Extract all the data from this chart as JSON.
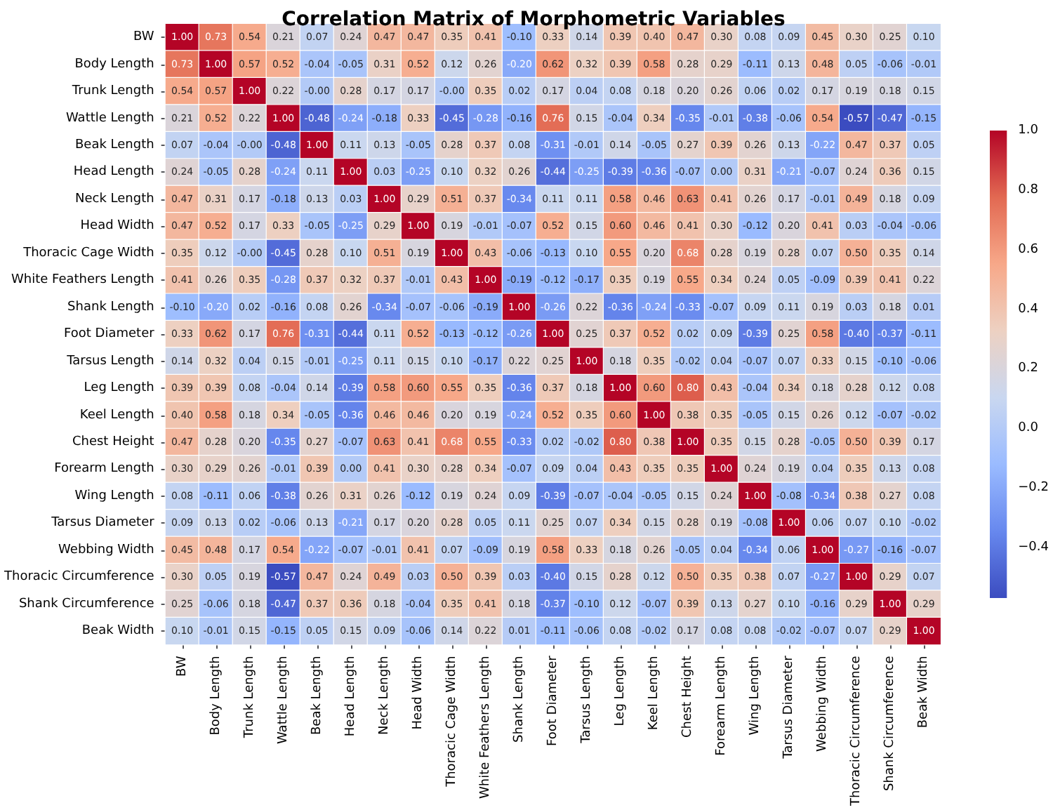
{
  "chart_data": {
    "type": "heatmap",
    "title": "Correlation Matrix of Morphometric Variables",
    "categories": [
      "BW",
      "Body Length",
      "Trunk Length",
      "Wattle Length",
      "Beak Length",
      "Head Length",
      "Neck Length",
      "Head Width",
      "Thoracic Cage Width",
      "White Feathers Length",
      "Shank Length",
      "Foot Diameter",
      "Tarsus Length",
      "Leg Length",
      "Keel Length",
      "Chest Height",
      "Forearm Length",
      "Wing Length",
      "Tarsus Diameter",
      "Webbing Width",
      "Thoracic Circumference",
      "Shank Circumference",
      "Beak Width"
    ],
    "y_categories": [
      "BW",
      "Body Length",
      "Trunk Length",
      "Wattle Length",
      "Beak Length",
      "Head Length",
      "Neck Length",
      "Head Width",
      "Thoracic Cage Width",
      "White Feathers Length",
      "Shank Length",
      "Foot Diameter",
      "Tarsus Length",
      "Leg Length",
      "Keel Length",
      "Chest Height",
      "Forearm Length",
      "Wing Length",
      "Tarsus Diameter",
      "Webbing Width",
      "Thoracic Circumference",
      "Shank Circumference",
      "Beak Width"
    ],
    "cells": [
      [
        1.0,
        0.73,
        0.54,
        0.21,
        0.07,
        0.24,
        0.47,
        0.47,
        0.35,
        0.41,
        -0.1,
        0.33,
        0.14,
        0.39,
        0.4,
        0.47,
        0.3,
        0.08,
        0.09,
        0.45,
        0.3,
        0.25,
        0.1
      ],
      [
        0.73,
        1.0,
        0.57,
        0.52,
        -0.04,
        -0.05,
        0.31,
        0.52,
        0.12,
        0.26,
        -0.2,
        0.62,
        0.32,
        0.39,
        0.58,
        0.28,
        0.29,
        -0.11,
        0.13,
        0.48,
        0.05,
        -0.06,
        -0.01
      ],
      [
        0.54,
        0.57,
        1.0,
        0.22,
        0,
        0.28,
        0.17,
        0.17,
        0,
        0.35,
        0.02,
        0.17,
        0.04,
        0.08,
        0.18,
        0.2,
        0.26,
        0.06,
        0.02,
        0.17,
        0.19,
        0.18,
        0.15
      ],
      [
        0.21,
        0.52,
        0.22,
        1.0,
        -0.48,
        -0.24,
        -0.18,
        0.33,
        -0.45,
        -0.28,
        -0.16,
        0.76,
        0.15,
        -0.04,
        0.34,
        -0.35,
        -0.01,
        -0.38,
        -0.06,
        0.54,
        -0.57,
        -0.47,
        -0.15
      ],
      [
        0.07,
        -0.04,
        0,
        -0.48,
        1.0,
        0.11,
        0.13,
        -0.05,
        0.28,
        0.37,
        0.08,
        -0.31,
        -0.01,
        0.14,
        -0.05,
        0.27,
        0.39,
        0.26,
        0.13,
        -0.22,
        0.47,
        0.37,
        0.05
      ],
      [
        0.24,
        -0.05,
        0.28,
        -0.24,
        0.11,
        1.0,
        0.03,
        -0.25,
        0.1,
        0.32,
        0.26,
        -0.44,
        -0.25,
        -0.39,
        -0.36,
        -0.07,
        0.0,
        0.31,
        -0.21,
        -0.07,
        0.24,
        0.36,
        0.15
      ],
      [
        0.47,
        0.31,
        0.17,
        -0.18,
        0.13,
        0.03,
        1.0,
        0.29,
        0.51,
        0.37,
        -0.34,
        0.11,
        0.11,
        0.58,
        0.46,
        0.63,
        0.41,
        0.26,
        0.17,
        -0.01,
        0.49,
        0.18,
        0.09
      ],
      [
        0.47,
        0.52,
        0.17,
        0.33,
        -0.05,
        -0.25,
        0.29,
        1.0,
        0.19,
        -0.01,
        -0.07,
        0.52,
        0.15,
        0.6,
        0.46,
        0.41,
        0.3,
        -0.12,
        0.2,
        0.41,
        0.03,
        -0.04,
        -0.06
      ],
      [
        0.35,
        0.12,
        0,
        -0.45,
        0.28,
        0.1,
        0.51,
        0.19,
        1.0,
        0.43,
        -0.06,
        -0.13,
        0.1,
        0.55,
        0.2,
        0.68,
        0.28,
        0.19,
        0.28,
        0.07,
        0.5,
        0.35,
        0.14
      ],
      [
        0.41,
        0.26,
        0.35,
        -0.28,
        0.37,
        0.32,
        0.37,
        -0.01,
        0.43,
        1.0,
        -0.19,
        -0.12,
        -0.17,
        0.35,
        0.19,
        0.55,
        0.34,
        0.24,
        0.05,
        -0.09,
        0.39,
        0.41,
        0.22
      ],
      [
        -0.1,
        -0.2,
        0.02,
        -0.16,
        0.08,
        0.26,
        -0.34,
        -0.07,
        -0.06,
        -0.19,
        1.0,
        -0.26,
        0.22,
        -0.36,
        -0.24,
        -0.33,
        -0.07,
        0.09,
        0.11,
        0.19,
        0.03,
        0.18,
        0.01
      ],
      [
        0.33,
        0.62,
        0.17,
        0.76,
        -0.31,
        -0.44,
        0.11,
        0.52,
        -0.13,
        -0.12,
        -0.26,
        1.0,
        0.25,
        0.37,
        0.52,
        0.02,
        0.09,
        -0.39,
        0.25,
        0.58,
        -0.4,
        -0.37,
        -0.11
      ],
      [
        0.14,
        0.32,
        0.04,
        0.15,
        -0.01,
        -0.25,
        0.11,
        0.15,
        0.1,
        -0.17,
        0.22,
        0.25,
        1.0,
        0.18,
        0.35,
        -0.02,
        0.04,
        -0.07,
        0.07,
        0.33,
        0.15,
        -0.1,
        -0.06
      ],
      [
        0.39,
        0.39,
        0.08,
        -0.04,
        0.14,
        -0.39,
        0.58,
        0.6,
        0.55,
        0.35,
        -0.36,
        0.37,
        0.18,
        1.0,
        0.6,
        0.8,
        0.43,
        -0.04,
        0.34,
        0.18,
        0.28,
        0.12,
        0.08
      ],
      [
        0.4,
        0.58,
        0.18,
        0.34,
        -0.05,
        -0.36,
        0.46,
        0.46,
        0.2,
        0.19,
        -0.24,
        0.52,
        0.35,
        0.6,
        1.0,
        0.38,
        0.35,
        -0.05,
        0.15,
        0.26,
        0.12,
        -0.07,
        -0.02
      ],
      [
        0.47,
        0.28,
        0.2,
        -0.35,
        0.27,
        -0.07,
        0.63,
        0.41,
        0.68,
        0.55,
        -0.33,
        0.02,
        -0.02,
        0.8,
        0.38,
        1.0,
        0.35,
        0.15,
        0.28,
        -0.05,
        0.5,
        0.39,
        0.17
      ],
      [
        0.3,
        0.29,
        0.26,
        -0.01,
        0.39,
        0.0,
        0.41,
        0.3,
        0.28,
        0.34,
        -0.07,
        0.09,
        0.04,
        0.43,
        0.35,
        0.35,
        1.0,
        0.24,
        0.19,
        0.04,
        0.35,
        0.13,
        0.08
      ],
      [
        0.08,
        -0.11,
        0.06,
        -0.38,
        0.26,
        0.31,
        0.26,
        -0.12,
        0.19,
        0.24,
        0.09,
        -0.39,
        -0.07,
        -0.04,
        -0.05,
        0.15,
        0.24,
        1.0,
        -0.08,
        -0.34,
        0.38,
        0.27,
        0.08
      ],
      [
        0.09,
        0.13,
        0.02,
        -0.06,
        0.13,
        -0.21,
        0.17,
        0.2,
        0.28,
        0.05,
        0.11,
        0.25,
        0.07,
        0.34,
        0.15,
        0.28,
        0.19,
        -0.08,
        1.0,
        0.06,
        0.07,
        0.1,
        -0.02
      ],
      [
        0.45,
        0.48,
        0.17,
        0.54,
        -0.22,
        -0.07,
        -0.01,
        0.41,
        0.07,
        -0.09,
        0.19,
        0.58,
        0.33,
        0.18,
        0.26,
        -0.05,
        0.04,
        -0.34,
        0.06,
        1.0,
        -0.27,
        -0.16,
        -0.07
      ],
      [
        0.3,
        0.05,
        0.19,
        -0.57,
        0.47,
        0.24,
        0.49,
        0.03,
        0.5,
        0.39,
        0.03,
        -0.4,
        0.15,
        0.28,
        0.12,
        0.5,
        0.35,
        0.38,
        0.07,
        -0.27,
        1.0,
        0.29,
        0.07
      ],
      [
        0.25,
        -0.06,
        0.18,
        -0.47,
        0.37,
        0.36,
        0.18,
        -0.04,
        0.35,
        0.41,
        0.18,
        -0.37,
        -0.1,
        0.12,
        -0.07,
        0.39,
        0.13,
        0.27,
        0.1,
        -0.16,
        0.29,
        1.0,
        0.29
      ],
      [
        0.1,
        -0.01,
        0.15,
        -0.15,
        0.05,
        0.15,
        0.09,
        -0.06,
        0.14,
        0.22,
        0.01,
        -0.11,
        -0.06,
        0.08,
        -0.02,
        0.17,
        0.08,
        0.08,
        -0.02,
        -0.07,
        0.07,
        0.29,
        1.0
      ]
    ],
    "cell_labels": [
      [
        "1.00",
        "0.73",
        "0.54",
        "0.21",
        "0.07",
        "0.24",
        "0.47",
        "0.47",
        "0.35",
        "0.41",
        "-0.10",
        "0.33",
        "0.14",
        "0.39",
        "0.40",
        "0.47",
        "0.30",
        "0.08",
        "0.09",
        "0.45",
        "0.30",
        "0.25",
        "0.10"
      ],
      [
        "0.73",
        "1.00",
        "0.57",
        "0.52",
        "-0.04",
        "-0.05",
        "0.31",
        "0.52",
        "0.12",
        "0.26",
        "-0.20",
        "0.62",
        "0.32",
        "0.39",
        "0.58",
        "0.28",
        "0.29",
        "-0.11",
        "0.13",
        "0.48",
        "0.05",
        "-0.06",
        "-0.01"
      ],
      [
        "0.54",
        "0.57",
        "1.00",
        "0.22",
        "-0.00",
        "0.28",
        "0.17",
        "0.17",
        "-0.00",
        "0.35",
        "0.02",
        "0.17",
        "0.04",
        "0.08",
        "0.18",
        "0.20",
        "0.26",
        "0.06",
        "0.02",
        "0.17",
        "0.19",
        "0.18",
        "0.15"
      ],
      [
        "0.21",
        "0.52",
        "0.22",
        "1.00",
        "-0.48",
        "-0.24",
        "-0.18",
        "0.33",
        "-0.45",
        "-0.28",
        "-0.16",
        "0.76",
        "0.15",
        "-0.04",
        "0.34",
        "-0.35",
        "-0.01",
        "-0.38",
        "-0.06",
        "0.54",
        "-0.57",
        "-0.47",
        "-0.15"
      ],
      [
        "0.07",
        "-0.04",
        "-0.00",
        "-0.48",
        "1.00",
        "0.11",
        "0.13",
        "-0.05",
        "0.28",
        "0.37",
        "0.08",
        "-0.31",
        "-0.01",
        "0.14",
        "-0.05",
        "0.27",
        "0.39",
        "0.26",
        "0.13",
        "-0.22",
        "0.47",
        "0.37",
        "0.05"
      ],
      [
        "0.24",
        "-0.05",
        "0.28",
        "-0.24",
        "0.11",
        "1.00",
        "0.03",
        "-0.25",
        "0.10",
        "0.32",
        "0.26",
        "-0.44",
        "-0.25",
        "-0.39",
        "-0.36",
        "-0.07",
        "0.00",
        "0.31",
        "-0.21",
        "-0.07",
        "0.24",
        "0.36",
        "0.15"
      ],
      [
        "0.47",
        "0.31",
        "0.17",
        "-0.18",
        "0.13",
        "0.03",
        "1.00",
        "0.29",
        "0.51",
        "0.37",
        "-0.34",
        "0.11",
        "0.11",
        "0.58",
        "0.46",
        "0.63",
        "0.41",
        "0.26",
        "0.17",
        "-0.01",
        "0.49",
        "0.18",
        "0.09"
      ],
      [
        "0.47",
        "0.52",
        "0.17",
        "0.33",
        "-0.05",
        "-0.25",
        "0.29",
        "1.00",
        "0.19",
        "-0.01",
        "-0.07",
        "0.52",
        "0.15",
        "0.60",
        "0.46",
        "0.41",
        "0.30",
        "-0.12",
        "0.20",
        "0.41",
        "0.03",
        "-0.04",
        "-0.06"
      ],
      [
        "0.35",
        "0.12",
        "-0.00",
        "-0.45",
        "0.28",
        "0.10",
        "0.51",
        "0.19",
        "1.00",
        "0.43",
        "-0.06",
        "-0.13",
        "0.10",
        "0.55",
        "0.20",
        "0.68",
        "0.28",
        "0.19",
        "0.28",
        "0.07",
        "0.50",
        "0.35",
        "0.14"
      ],
      [
        "0.41",
        "0.26",
        "0.35",
        "-0.28",
        "0.37",
        "0.32",
        "0.37",
        "-0.01",
        "0.43",
        "1.00",
        "-0.19",
        "-0.12",
        "-0.17",
        "0.35",
        "0.19",
        "0.55",
        "0.34",
        "0.24",
        "0.05",
        "-0.09",
        "0.39",
        "0.41",
        "0.22"
      ],
      [
        "-0.10",
        "-0.20",
        "0.02",
        "-0.16",
        "0.08",
        "0.26",
        "-0.34",
        "-0.07",
        "-0.06",
        "-0.19",
        "1.00",
        "-0.26",
        "0.22",
        "-0.36",
        "-0.24",
        "-0.33",
        "-0.07",
        "0.09",
        "0.11",
        "0.19",
        "0.03",
        "0.18",
        "0.01"
      ],
      [
        "0.33",
        "0.62",
        "0.17",
        "0.76",
        "-0.31",
        "-0.44",
        "0.11",
        "0.52",
        "-0.13",
        "-0.12",
        "-0.26",
        "1.00",
        "0.25",
        "0.37",
        "0.52",
        "0.02",
        "0.09",
        "-0.39",
        "0.25",
        "0.58",
        "-0.40",
        "-0.37",
        "-0.11"
      ],
      [
        "0.14",
        "0.32",
        "0.04",
        "0.15",
        "-0.01",
        "-0.25",
        "0.11",
        "0.15",
        "0.10",
        "-0.17",
        "0.22",
        "0.25",
        "1.00",
        "0.18",
        "0.35",
        "-0.02",
        "0.04",
        "-0.07",
        "0.07",
        "0.33",
        "0.15",
        "-0.10",
        "-0.06"
      ],
      [
        "0.39",
        "0.39",
        "0.08",
        "-0.04",
        "0.14",
        "-0.39",
        "0.58",
        "0.60",
        "0.55",
        "0.35",
        "-0.36",
        "0.37",
        "0.18",
        "1.00",
        "0.60",
        "0.80",
        "0.43",
        "-0.04",
        "0.34",
        "0.18",
        "0.28",
        "0.12",
        "0.08"
      ],
      [
        "0.40",
        "0.58",
        "0.18",
        "0.34",
        "-0.05",
        "-0.36",
        "0.46",
        "0.46",
        "0.20",
        "0.19",
        "-0.24",
        "0.52",
        "0.35",
        "0.60",
        "1.00",
        "0.38",
        "0.35",
        "-0.05",
        "0.15",
        "0.26",
        "0.12",
        "-0.07",
        "-0.02"
      ],
      [
        "0.47",
        "0.28",
        "0.20",
        "-0.35",
        "0.27",
        "-0.07",
        "0.63",
        "0.41",
        "0.68",
        "0.55",
        "-0.33",
        "0.02",
        "-0.02",
        "0.80",
        "0.38",
        "1.00",
        "0.35",
        "0.15",
        "0.28",
        "-0.05",
        "0.50",
        "0.39",
        "0.17"
      ],
      [
        "0.30",
        "0.29",
        "0.26",
        "-0.01",
        "0.39",
        "0.00",
        "0.41",
        "0.30",
        "0.28",
        "0.34",
        "-0.07",
        "0.09",
        "0.04",
        "0.43",
        "0.35",
        "0.35",
        "1.00",
        "0.24",
        "0.19",
        "0.04",
        "0.35",
        "0.13",
        "0.08"
      ],
      [
        "0.08",
        "-0.11",
        "0.06",
        "-0.38",
        "0.26",
        "0.31",
        "0.26",
        "-0.12",
        "0.19",
        "0.24",
        "0.09",
        "-0.39",
        "-0.07",
        "-0.04",
        "-0.05",
        "0.15",
        "0.24",
        "1.00",
        "-0.08",
        "-0.34",
        "0.38",
        "0.27",
        "0.08"
      ],
      [
        "0.09",
        "0.13",
        "0.02",
        "-0.06",
        "0.13",
        "-0.21",
        "0.17",
        "0.20",
        "0.28",
        "0.05",
        "0.11",
        "0.25",
        "0.07",
        "0.34",
        "0.15",
        "0.28",
        "0.19",
        "-0.08",
        "1.00",
        "0.06",
        "0.07",
        "0.10",
        "-0.02"
      ],
      [
        "0.45",
        "0.48",
        "0.17",
        "0.54",
        "-0.22",
        "-0.07",
        "-0.01",
        "0.41",
        "0.07",
        "-0.09",
        "0.19",
        "0.58",
        "0.33",
        "0.18",
        "0.26",
        "-0.05",
        "0.04",
        "-0.34",
        "0.06",
        "1.00",
        "-0.27",
        "-0.16",
        "-0.07"
      ],
      [
        "0.30",
        "0.05",
        "0.19",
        "-0.57",
        "0.47",
        "0.24",
        "0.49",
        "0.03",
        "0.50",
        "0.39",
        "0.03",
        "-0.40",
        "0.15",
        "0.28",
        "0.12",
        "0.50",
        "0.35",
        "0.38",
        "0.07",
        "-0.27",
        "1.00",
        "0.29",
        "0.07"
      ],
      [
        "0.25",
        "-0.06",
        "0.18",
        "-0.47",
        "0.37",
        "0.36",
        "0.18",
        "-0.04",
        "0.35",
        "0.41",
        "0.18",
        "-0.37",
        "-0.10",
        "0.12",
        "-0.07",
        "0.39",
        "0.13",
        "0.27",
        "0.10",
        "-0.16",
        "0.29",
        "1.00",
        "0.29"
      ],
      [
        "0.10",
        "-0.01",
        "0.15",
        "-0.15",
        "0.05",
        "0.15",
        "0.09",
        "-0.06",
        "0.14",
        "0.22",
        "0.01",
        "-0.11",
        "-0.06",
        "0.08",
        "-0.02",
        "0.17",
        "0.08",
        "0.08",
        "-0.02",
        "-0.07",
        "0.07",
        "0.29",
        "1.00"
      ]
    ],
    "data_labels": true,
    "clim": [
      -0.57,
      1.0
    ],
    "cticks": [
      {
        "value": -0.4,
        "label": "−0.4"
      },
      {
        "value": -0.2,
        "label": "−0.2"
      },
      {
        "value": 0,
        "label": "0.0"
      },
      {
        "value": 0.2,
        "label": "0.2"
      },
      {
        "value": 0.4,
        "label": "0.4"
      },
      {
        "value": 0.6,
        "label": "0.6"
      },
      {
        "value": 0.8,
        "label": "0.8"
      },
      {
        "value": 1.0,
        "label": "1.0"
      }
    ]
  }
}
